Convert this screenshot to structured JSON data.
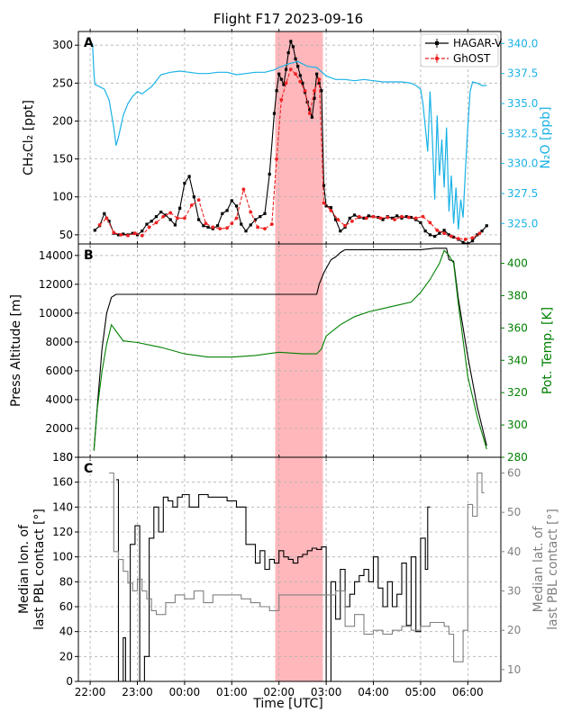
{
  "figure": {
    "title": "Flight F17 2023-09-16"
  },
  "shared_x": {
    "label": "Time [UTC]",
    "ticks": [
      {
        "value": 22,
        "label": "22:00"
      },
      {
        "value": 23,
        "label": "23:00"
      },
      {
        "value": 24,
        "label": "00:00"
      },
      {
        "value": 25,
        "label": "01:00"
      },
      {
        "value": 26,
        "label": "02:00"
      },
      {
        "value": 27,
        "label": "03:00"
      },
      {
        "value": 28,
        "label": "04:00"
      },
      {
        "value": 29,
        "label": "05:00"
      },
      {
        "value": 30,
        "label": "06:00"
      }
    ],
    "xlim": [
      21.75,
      30.7
    ],
    "highlight_interval": [
      25.92,
      26.93
    ],
    "highlight_color": "#ff9fa4"
  },
  "chart_data": [
    {
      "panel_label": "A",
      "type": "line",
      "ylabel": "CH₂Cl₂ [ppt]",
      "y2label": "N₂O [ppb]",
      "ylim": [
        38,
        318
      ],
      "y2lim": [
        323.3,
        341.0
      ],
      "yticks": [
        50,
        100,
        150,
        200,
        250,
        300
      ],
      "y2ticks": [
        325.0,
        327.5,
        330.0,
        332.5,
        335.0,
        337.5,
        340.0
      ],
      "legend": {
        "placement": "top-right",
        "entries": [
          "HAGAR-V",
          "GhOST"
        ]
      },
      "series": [
        {
          "name": "HAGAR-V",
          "axis": "left",
          "color": "#000000",
          "marker": "square",
          "x": [
            22.1,
            22.2,
            22.3,
            22.4,
            22.5,
            22.6,
            22.7,
            22.8,
            22.9,
            23.0,
            23.1,
            23.2,
            23.3,
            23.4,
            23.5,
            23.6,
            23.7,
            23.8,
            23.9,
            24.0,
            24.1,
            24.2,
            24.3,
            24.4,
            24.5,
            24.6,
            24.7,
            24.8,
            24.9,
            25.0,
            25.1,
            25.2,
            25.3,
            25.4,
            25.5,
            25.6,
            25.7,
            25.8,
            25.9,
            25.95,
            26.0,
            26.05,
            26.1,
            26.15,
            26.2,
            26.25,
            26.3,
            26.35,
            26.4,
            26.45,
            26.5,
            26.55,
            26.6,
            26.65,
            26.7,
            26.75,
            26.8,
            26.85,
            26.9,
            26.95,
            27.0,
            27.1,
            27.2,
            27.3,
            27.4,
            27.5,
            27.6,
            27.7,
            27.8,
            27.9,
            28.0,
            28.1,
            28.2,
            28.3,
            28.4,
            28.5,
            28.6,
            28.7,
            28.8,
            28.9,
            29.0,
            29.1,
            29.2,
            29.3,
            29.4,
            29.5,
            29.6,
            29.7,
            29.8,
            29.9,
            30.0,
            30.1,
            30.2,
            30.3,
            30.4
          ],
          "y": [
            56,
            62,
            78,
            68,
            52,
            50,
            51,
            50,
            52,
            50,
            55,
            64,
            68,
            74,
            80,
            76,
            70,
            63,
            85,
            118,
            127,
            100,
            70,
            62,
            60,
            58,
            62,
            78,
            82,
            95,
            88,
            64,
            55,
            63,
            70,
            74,
            78,
            130,
            210,
            240,
            262,
            255,
            248,
            268,
            290,
            305,
            298,
            282,
            272,
            260,
            250,
            238,
            225,
            215,
            205,
            230,
            262,
            250,
            240,
            115,
            88,
            86,
            70,
            55,
            60,
            72,
            76,
            73,
            72,
            75,
            74,
            73,
            70,
            74,
            72,
            75,
            72,
            74,
            73,
            70,
            66,
            55,
            50,
            48,
            52,
            56,
            50,
            47,
            44,
            40,
            38,
            42,
            50,
            55,
            62
          ]
        },
        {
          "name": "GhOST",
          "axis": "left",
          "color": "#ee2222",
          "marker": "circle",
          "style": "dashed",
          "x": [
            22.2,
            22.35,
            22.5,
            22.65,
            22.8,
            22.95,
            23.1,
            23.25,
            23.4,
            23.55,
            23.7,
            23.85,
            24.0,
            24.15,
            24.3,
            24.45,
            24.6,
            24.75,
            24.9,
            25.0,
            25.1,
            25.25,
            25.4,
            25.55,
            25.7,
            25.85,
            25.95,
            26.05,
            26.15,
            26.25,
            26.35,
            26.45,
            26.55,
            26.65,
            26.75,
            26.85,
            26.95,
            27.1,
            27.25,
            27.4,
            27.55,
            27.7,
            27.85,
            28.0,
            28.15,
            28.3,
            28.45,
            28.6,
            28.75,
            28.9,
            29.05,
            29.2,
            29.35,
            29.5,
            29.65,
            29.8,
            29.95,
            30.1,
            30.25
          ],
          "y": [
            63,
            72,
            53,
            50,
            49,
            52,
            49,
            60,
            66,
            74,
            79,
            72,
            72,
            89,
            96,
            65,
            60,
            58,
            59,
            65,
            72,
            110,
            80,
            60,
            58,
            64,
            150,
            228,
            250,
            268,
            262,
            252,
            240,
            210,
            240,
            255,
            92,
            82,
            70,
            62,
            68,
            74,
            72,
            74,
            72,
            73,
            70,
            74,
            73,
            72,
            74,
            66,
            56,
            52,
            48,
            45,
            44,
            46,
            52
          ]
        },
        {
          "name": "N₂O",
          "axis": "right",
          "color": "#1ab2e6",
          "x": [
            22.05,
            22.08,
            22.1,
            22.2,
            22.3,
            22.4,
            22.5,
            22.55,
            22.6,
            22.7,
            22.8,
            22.9,
            23.0,
            23.1,
            23.2,
            23.3,
            23.4,
            23.5,
            23.7,
            23.9,
            24.1,
            24.3,
            24.5,
            24.7,
            24.9,
            25.1,
            25.3,
            25.5,
            25.7,
            25.9,
            26.0,
            26.2,
            26.4,
            26.6,
            26.8,
            27.0,
            27.2,
            27.4,
            27.6,
            27.8,
            28.0,
            28.2,
            28.4,
            28.6,
            28.8,
            28.9,
            29.0,
            29.05,
            29.1,
            29.15,
            29.2,
            29.25,
            29.3,
            29.35,
            29.4,
            29.45,
            29.5,
            29.55,
            29.6,
            29.65,
            29.7,
            29.75,
            29.8,
            29.85,
            29.9,
            29.95,
            30.0,
            30.05,
            30.1,
            30.2,
            30.3,
            30.4
          ],
          "y": [
            340.0,
            337.5,
            336.6,
            336.4,
            336.2,
            335.3,
            333.0,
            331.5,
            332.2,
            334.0,
            335.0,
            335.6,
            336.0,
            335.8,
            336.1,
            336.4,
            336.9,
            337.4,
            337.6,
            337.7,
            337.6,
            337.5,
            337.5,
            337.6,
            337.6,
            337.4,
            337.5,
            337.6,
            337.6,
            337.8,
            338.0,
            338.3,
            338.5,
            338.1,
            338.0,
            337.3,
            337.0,
            337.0,
            336.9,
            337.0,
            336.9,
            336.8,
            336.8,
            336.8,
            336.7,
            336.5,
            336.2,
            335.0,
            333.0,
            331.0,
            336.0,
            332.0,
            327.0,
            334.0,
            329.0,
            332.0,
            328.0,
            333.0,
            326.0,
            329.0,
            325.0,
            328.0,
            324.5,
            327.0,
            325.5,
            329.5,
            333.0,
            336.0,
            336.8,
            336.7,
            336.5,
            336.5
          ]
        }
      ]
    },
    {
      "panel_label": "B",
      "type": "line",
      "ylabel": "Press Altitude [m]",
      "y2label": "Pot. Temp. [K]",
      "ylim": [
        0,
        14800
      ],
      "y2lim": [
        280,
        412
      ],
      "yticks": [
        0,
        2000,
        4000,
        6000,
        8000,
        10000,
        12000,
        14000
      ],
      "y2ticks": [
        280,
        300,
        320,
        340,
        360,
        380,
        400
      ],
      "series": [
        {
          "name": "Press Altitude",
          "axis": "left",
          "color": "#000000",
          "x": [
            22.08,
            22.15,
            22.25,
            22.35,
            22.45,
            22.55,
            22.7,
            26.8,
            26.85,
            26.95,
            27.1,
            27.2,
            27.3,
            27.4,
            29.0,
            29.3,
            29.55,
            29.6,
            29.7,
            29.8,
            30.0,
            30.2,
            30.4
          ],
          "y": [
            500,
            3500,
            7500,
            10000,
            11100,
            11300,
            11300,
            11300,
            12000,
            12800,
            13700,
            13900,
            14200,
            14400,
            14400,
            14500,
            14500,
            13700,
            13600,
            11000,
            7000,
            3500,
            800
          ]
        },
        {
          "name": "Pot. Temp.",
          "axis": "right",
          "color": "#008000",
          "x": [
            22.08,
            22.15,
            22.25,
            22.35,
            22.45,
            22.55,
            22.7,
            23.0,
            23.5,
            24.0,
            24.5,
            25.0,
            25.5,
            26.0,
            26.5,
            26.8,
            26.9,
            27.0,
            27.3,
            27.6,
            27.9,
            28.2,
            28.5,
            28.8,
            29.0,
            29.2,
            29.4,
            29.5,
            29.6,
            29.7,
            29.8,
            30.0,
            30.2,
            30.4
          ],
          "y": [
            284,
            310,
            333,
            350,
            362,
            358,
            352,
            351,
            348,
            344,
            342,
            342,
            343,
            345,
            344,
            344,
            347,
            355,
            362,
            367,
            370,
            372,
            374,
            376,
            382,
            390,
            400,
            408,
            405,
            400,
            375,
            330,
            305,
            285
          ]
        }
      ]
    },
    {
      "panel_label": "C",
      "type": "line",
      "ylabel": "Median lon. of last PBL contact [°]",
      "y2label": "Median lat. of last PBL contact [°]",
      "ylim": [
        0,
        180
      ],
      "y2lim": [
        7,
        64
      ],
      "yticks": [
        0,
        20,
        40,
        60,
        80,
        100,
        120,
        140,
        160,
        180
      ],
      "y2ticks": [
        10,
        20,
        30,
        40,
        50,
        60
      ],
      "series": [
        {
          "name": "Median lon.",
          "axis": "left",
          "color": "#000000",
          "style": "steps",
          "x": [
            22.55,
            22.6,
            22.7,
            22.75,
            22.85,
            22.95,
            23.05,
            23.15,
            23.25,
            23.35,
            23.45,
            23.55,
            23.65,
            23.75,
            23.85,
            23.95,
            24.1,
            24.3,
            24.5,
            24.7,
            24.9,
            25.1,
            25.3,
            25.5,
            25.6,
            25.7,
            25.8,
            25.9,
            26.0,
            26.1,
            26.2,
            26.3,
            26.4,
            26.5,
            26.6,
            26.7,
            26.8,
            26.9,
            27.0,
            27.1,
            27.2,
            27.3,
            27.4,
            27.5,
            27.6,
            27.7,
            27.8,
            27.9,
            28.0,
            28.1,
            28.2,
            28.3,
            28.4,
            28.5,
            28.6,
            28.7,
            28.8,
            28.9,
            29.0,
            29.1,
            29.15
          ],
          "y": [
            162,
            0,
            35,
            0,
            110,
            125,
            0,
            20,
            115,
            140,
            120,
            148,
            145,
            140,
            148,
            150,
            140,
            150,
            148,
            148,
            145,
            140,
            110,
            95,
            105,
            90,
            98,
            95,
            105,
            100,
            98,
            95,
            100,
            102,
            105,
            107,
            106,
            108,
            0,
            80,
            50,
            90,
            60,
            70,
            80,
            85,
            90,
            80,
            100,
            75,
            60,
            80,
            60,
            70,
            95,
            45,
            100,
            40,
            115,
            90,
            140
          ]
        },
        {
          "name": "Median lat.",
          "axis": "right",
          "color": "#808080",
          "style": "steps",
          "x": [
            22.4,
            22.5,
            22.6,
            22.7,
            22.8,
            22.9,
            23.0,
            23.1,
            23.2,
            23.3,
            23.4,
            23.6,
            23.8,
            24.0,
            24.2,
            24.4,
            24.6,
            24.8,
            25.0,
            25.2,
            25.4,
            25.6,
            25.8,
            26.0,
            26.2,
            26.4,
            26.6,
            26.8,
            27.0,
            27.2,
            27.4,
            27.6,
            27.8,
            28.0,
            28.2,
            28.4,
            28.6,
            28.8,
            29.0,
            29.2,
            29.4,
            29.5,
            29.6,
            29.7,
            29.9,
            30.0,
            30.1,
            30.2,
            30.3
          ],
          "y": [
            60,
            40,
            38,
            35,
            32,
            30,
            33,
            30,
            28,
            25,
            24,
            27,
            29,
            28,
            30,
            27,
            29,
            29,
            29,
            28,
            27,
            26,
            25,
            29,
            29,
            29,
            29,
            29,
            29,
            30,
            21,
            24,
            19,
            20,
            19,
            20,
            21,
            20,
            21,
            22,
            22,
            21,
            19,
            12,
            20,
            52,
            49,
            60,
            55
          ]
        }
      ]
    }
  ]
}
